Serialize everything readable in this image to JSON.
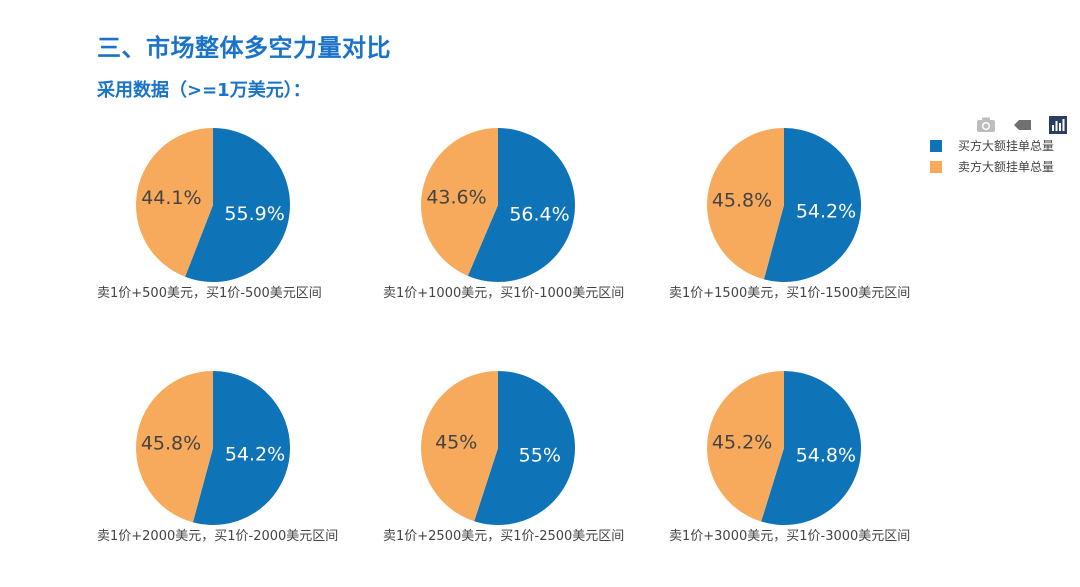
{
  "header": {
    "title": "三、市场整体多空力量对比",
    "subtitle": "采用数据（>=1万美元）："
  },
  "toolbar": {
    "icons": [
      "camera-icon",
      "tag-icon",
      "bar-chart-icon"
    ]
  },
  "colors": {
    "buy": "#0f73b8",
    "sell": "#f7aa5b",
    "title": "#1a73c8",
    "pie_text": "#ffffff",
    "sell_text": "#444444",
    "caption": "#444444"
  },
  "chart_data": {
    "type": "pie",
    "legend": {
      "position": "top-right",
      "entries": [
        "买方大额挂单总量",
        "卖方大额挂单总量"
      ]
    },
    "pies": [
      {
        "caption": "卖1价+500美元，买1价-500美元区间",
        "values": [
          55.9,
          44.1
        ],
        "labels": [
          "55.9%",
          "44.1%"
        ]
      },
      {
        "caption": "卖1价+1000美元，买1价-1000美元区间",
        "values": [
          56.4,
          43.6
        ],
        "labels": [
          "56.4%",
          "43.6%"
        ]
      },
      {
        "caption": "卖1价+1500美元，买1价-1500美元区间",
        "values": [
          54.2,
          45.8
        ],
        "labels": [
          "54.2%",
          "45.8%"
        ]
      },
      {
        "caption": "卖1价+2000美元，买1价-2000美元区间",
        "values": [
          54.2,
          45.8
        ],
        "labels": [
          "54.2%",
          "45.8%"
        ]
      },
      {
        "caption": "卖1价+2500美元，买1价-2500美元区间",
        "values": [
          55,
          45
        ],
        "labels": [
          "55%",
          "45%"
        ]
      },
      {
        "caption": "卖1价+3000美元，买1价-3000美元区间",
        "values": [
          54.8,
          45.2
        ],
        "labels": [
          "54.8%",
          "45.2%"
        ]
      }
    ]
  }
}
